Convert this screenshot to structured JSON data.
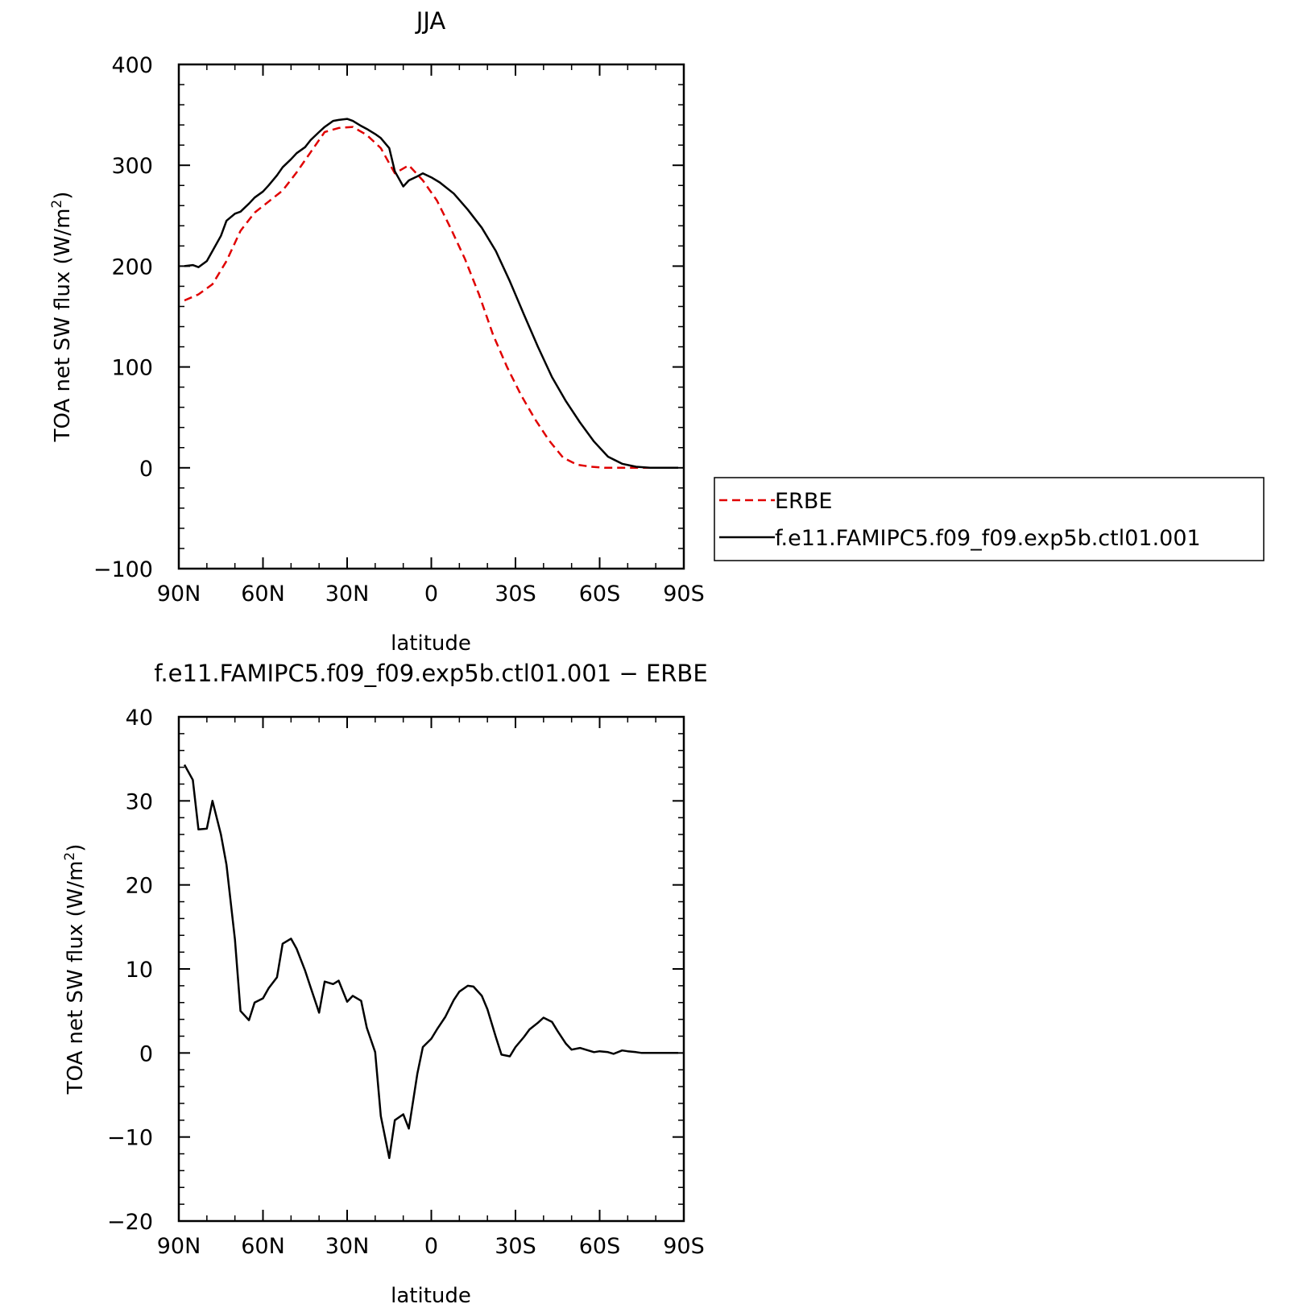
{
  "chart_data": [
    {
      "type": "line",
      "title": "JJA",
      "xlabel": "latitude",
      "ylabel_main": "TOA net SW flux (W/m",
      "ylabel_sup": "2",
      "ylabel_close": ")",
      "xlim": [
        90,
        -90
      ],
      "ylim": [
        -100,
        400
      ],
      "x_ticks": [
        90,
        60,
        30,
        0,
        -30,
        -60,
        -90
      ],
      "x_tick_labels": [
        "90N",
        "60N",
        "30N",
        "0",
        "30S",
        "60S",
        "90S"
      ],
      "y_ticks": [
        -100,
        0,
        100,
        200,
        300,
        400
      ],
      "y_tick_labels": [
        "−100",
        "0",
        "100",
        "200",
        "300",
        "400"
      ],
      "legend_position": "right",
      "series": [
        {
          "name": "ERBE",
          "color": "#e00000",
          "dash": "dashed",
          "x": [
            88,
            83,
            78,
            73,
            68,
            63,
            58,
            53,
            48,
            43,
            38,
            33,
            28,
            23,
            18,
            13,
            8,
            3,
            -2,
            -7,
            -12,
            -17,
            -22,
            -27,
            -32,
            -37,
            -42,
            -47,
            -52,
            -57,
            -62,
            -67,
            -72,
            -77,
            -82,
            -88
          ],
          "y": [
            166,
            172,
            182,
            205,
            235,
            253,
            264,
            275,
            293,
            313,
            333,
            337,
            338,
            330,
            317,
            292,
            300,
            285,
            265,
            237,
            207,
            172,
            132,
            100,
            72,
            48,
            27,
            10,
            3,
            1,
            0,
            0,
            0,
            0,
            0,
            0
          ]
        },
        {
          "name": "f.e11.FAMIPC5.f09_f09.exp5b.ctl01.001",
          "color": "#000000",
          "dash": "solid",
          "x": [
            88,
            85,
            83,
            80,
            78,
            75,
            73,
            70,
            68,
            65,
            63,
            60,
            58,
            55,
            53,
            50,
            48,
            45,
            43,
            40,
            38,
            35,
            33,
            30,
            28,
            25,
            23,
            20,
            18,
            15,
            13,
            10,
            8,
            5,
            3,
            0,
            -3,
            -8,
            -13,
            -18,
            -23,
            -28,
            -33,
            -38,
            -43,
            -48,
            -53,
            -58,
            -63,
            -68,
            -73,
            -78,
            -83,
            -88
          ],
          "y": [
            200,
            201,
            199,
            205,
            215,
            230,
            245,
            252,
            254,
            262,
            268,
            274,
            280,
            290,
            298,
            306,
            312,
            318,
            325,
            333,
            338,
            344,
            345,
            346,
            344,
            339,
            336,
            331,
            327,
            317,
            294,
            279,
            285,
            289,
            292,
            288,
            283,
            272,
            256,
            238,
            215,
            185,
            152,
            120,
            90,
            66,
            45,
            26,
            11,
            4,
            1,
            0,
            0,
            0
          ]
        }
      ]
    },
    {
      "type": "line",
      "title": "f.e11.FAMIPC5.f09_f09.exp5b.ctl01.001  −  ERBE",
      "xlabel": "latitude",
      "ylabel_main": "TOA net SW flux (W/m",
      "ylabel_sup": "2",
      "ylabel_close": ")",
      "xlim": [
        90,
        -90
      ],
      "ylim": [
        -20,
        40
      ],
      "x_ticks": [
        90,
        60,
        30,
        0,
        -30,
        -60,
        -90
      ],
      "x_tick_labels": [
        "90N",
        "60N",
        "30N",
        "0",
        "30S",
        "60S",
        "90S"
      ],
      "y_ticks": [
        -20,
        -10,
        0,
        10,
        20,
        30,
        40
      ],
      "y_tick_labels": [
        "−20",
        "−10",
        "0",
        "10",
        "20",
        "30",
        "40"
      ],
      "series": [
        {
          "color": "#000000",
          "dash": "solid",
          "x": [
            88,
            85,
            83,
            80,
            78,
            75,
            73,
            70,
            68,
            65,
            63,
            60,
            58,
            55,
            53,
            50,
            48,
            45,
            43,
            40,
            38,
            35,
            33,
            30,
            28,
            25,
            23,
            20,
            18,
            15,
            13,
            10,
            8,
            5,
            3,
            0,
            -2,
            -5,
            -8,
            -10,
            -13,
            -15,
            -18,
            -20,
            -23,
            -25,
            -28,
            -30,
            -33,
            -35,
            -38,
            -40,
            -43,
            -45,
            -48,
            -50,
            -53,
            -55,
            -58,
            -60,
            -63,
            -65,
            -68,
            -70,
            -73,
            -75,
            -78,
            -80,
            -83,
            -85,
            -88
          ],
          "y": [
            34.3,
            32.5,
            26.6,
            26.7,
            30,
            26,
            22.4,
            13.5,
            5,
            3.9,
            6,
            6.5,
            7.7,
            9,
            13,
            13.6,
            12.4,
            9.8,
            7.8,
            4.8,
            8.5,
            8.2,
            8.6,
            6.1,
            6.8,
            6.2,
            3,
            0.1,
            -7.5,
            -12.5,
            -8,
            -7.3,
            -9,
            -2.5,
            0.7,
            1.7,
            2.8,
            4.3,
            6.3,
            7.3,
            8,
            7.9,
            6.8,
            5.2,
            1.9,
            -0.2,
            -0.4,
            0.7,
            1.9,
            2.8,
            3.6,
            4.2,
            3.7,
            2.6,
            1.1,
            0.4,
            0.6,
            0.4,
            0.1,
            0.2,
            0.1,
            -0.1,
            0.3,
            0.2,
            0.1,
            0,
            0,
            0,
            0,
            0,
            0
          ]
        }
      ]
    }
  ]
}
